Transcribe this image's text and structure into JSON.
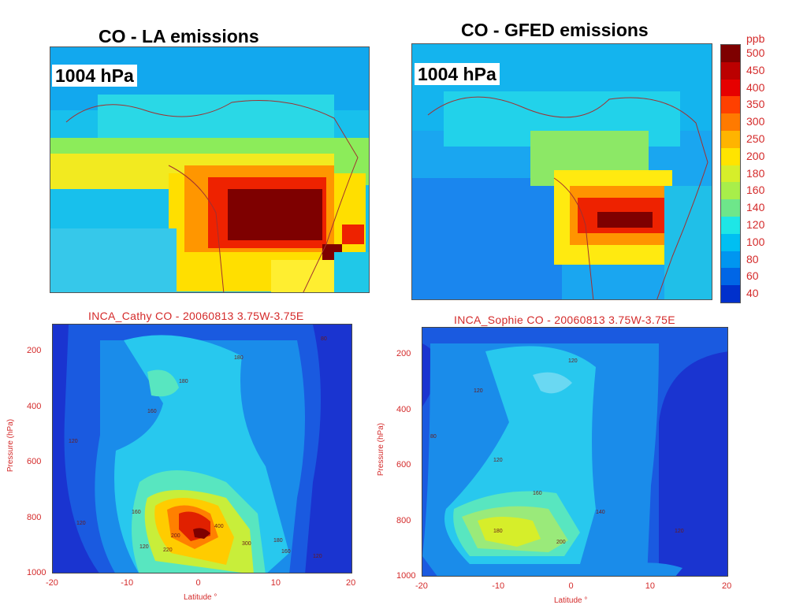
{
  "colorbar": {
    "unit": "ppb",
    "levels": [
      "500",
      "450",
      "400",
      "350",
      "300",
      "250",
      "200",
      "180",
      "160",
      "140",
      "120",
      "100",
      "80",
      "60",
      "40"
    ],
    "colors": [
      "#7e0000",
      "#bb0000",
      "#e60000",
      "#ff4000",
      "#ff7a00",
      "#ffb400",
      "#ffe400",
      "#d6ee2a",
      "#a8ee4a",
      "#6ee68a",
      "#1ee6e6",
      "#00bff2",
      "#0096f0",
      "#0066e6",
      "#0030cc"
    ]
  },
  "maps": [
    {
      "title": "CO - LA emissions",
      "pressure_label": "1004 hPa"
    },
    {
      "title": "CO - GFED emissions",
      "pressure_label": "1004 hPa"
    }
  ],
  "cross_sections": [
    {
      "title": "INCA_Cathy  CO - 20060813  3.75W-3.75E",
      "xlabel": "Latitude °",
      "ylabel": "Pressure (hPa)",
      "xticks": [
        "-20",
        "-10",
        "0",
        "10",
        "20"
      ],
      "yticks": [
        "200",
        "400",
        "600",
        "800",
        "1000"
      ]
    },
    {
      "title": "INCA_Sophie  CO - 20060813  3.75W-3.75E",
      "xlabel": "Latitude °",
      "ylabel": "Pressure (hPa)",
      "xticks": [
        "-20",
        "-10",
        "0",
        "10",
        "20"
      ],
      "yticks": [
        "200",
        "400",
        "600",
        "800",
        "1000"
      ]
    }
  ],
  "chart_data": [
    {
      "type": "heatmap",
      "title": "CO - LA emissions",
      "annotation": "1004 hPa",
      "unit": "ppb",
      "scale": [
        40,
        60,
        80,
        100,
        120,
        140,
        160,
        180,
        200,
        250,
        300,
        350,
        400,
        450,
        500
      ]
    },
    {
      "type": "heatmap",
      "title": "CO - GFED emissions",
      "annotation": "1004 hPa",
      "unit": "ppb",
      "scale": [
        40,
        60,
        80,
        100,
        120,
        140,
        160,
        180,
        200,
        250,
        300,
        350,
        400,
        450,
        500
      ]
    },
    {
      "type": "heatmap",
      "title": "INCA_Cathy  CO - 20060813  3.75W-3.75E",
      "xlabel": "Latitude °",
      "ylabel": "Pressure (hPa)",
      "xlim": [
        -20,
        20
      ],
      "ylim": [
        1000,
        100
      ],
      "contour_labels": [
        "180",
        "180",
        "160",
        "120",
        "120",
        "120",
        "160",
        "200",
        "220",
        "300",
        "400",
        "180",
        "160",
        "120",
        "80"
      ]
    },
    {
      "type": "heatmap",
      "title": "INCA_Sophie  CO - 20060813  3.75W-3.75E",
      "xlabel": "Latitude °",
      "ylabel": "Pressure (hPa)",
      "xlim": [
        -20,
        20
      ],
      "ylim": [
        1000,
        100
      ],
      "contour_labels": [
        "120",
        "120",
        "120",
        "160",
        "180",
        "200",
        "140",
        "120",
        "80"
      ]
    }
  ]
}
